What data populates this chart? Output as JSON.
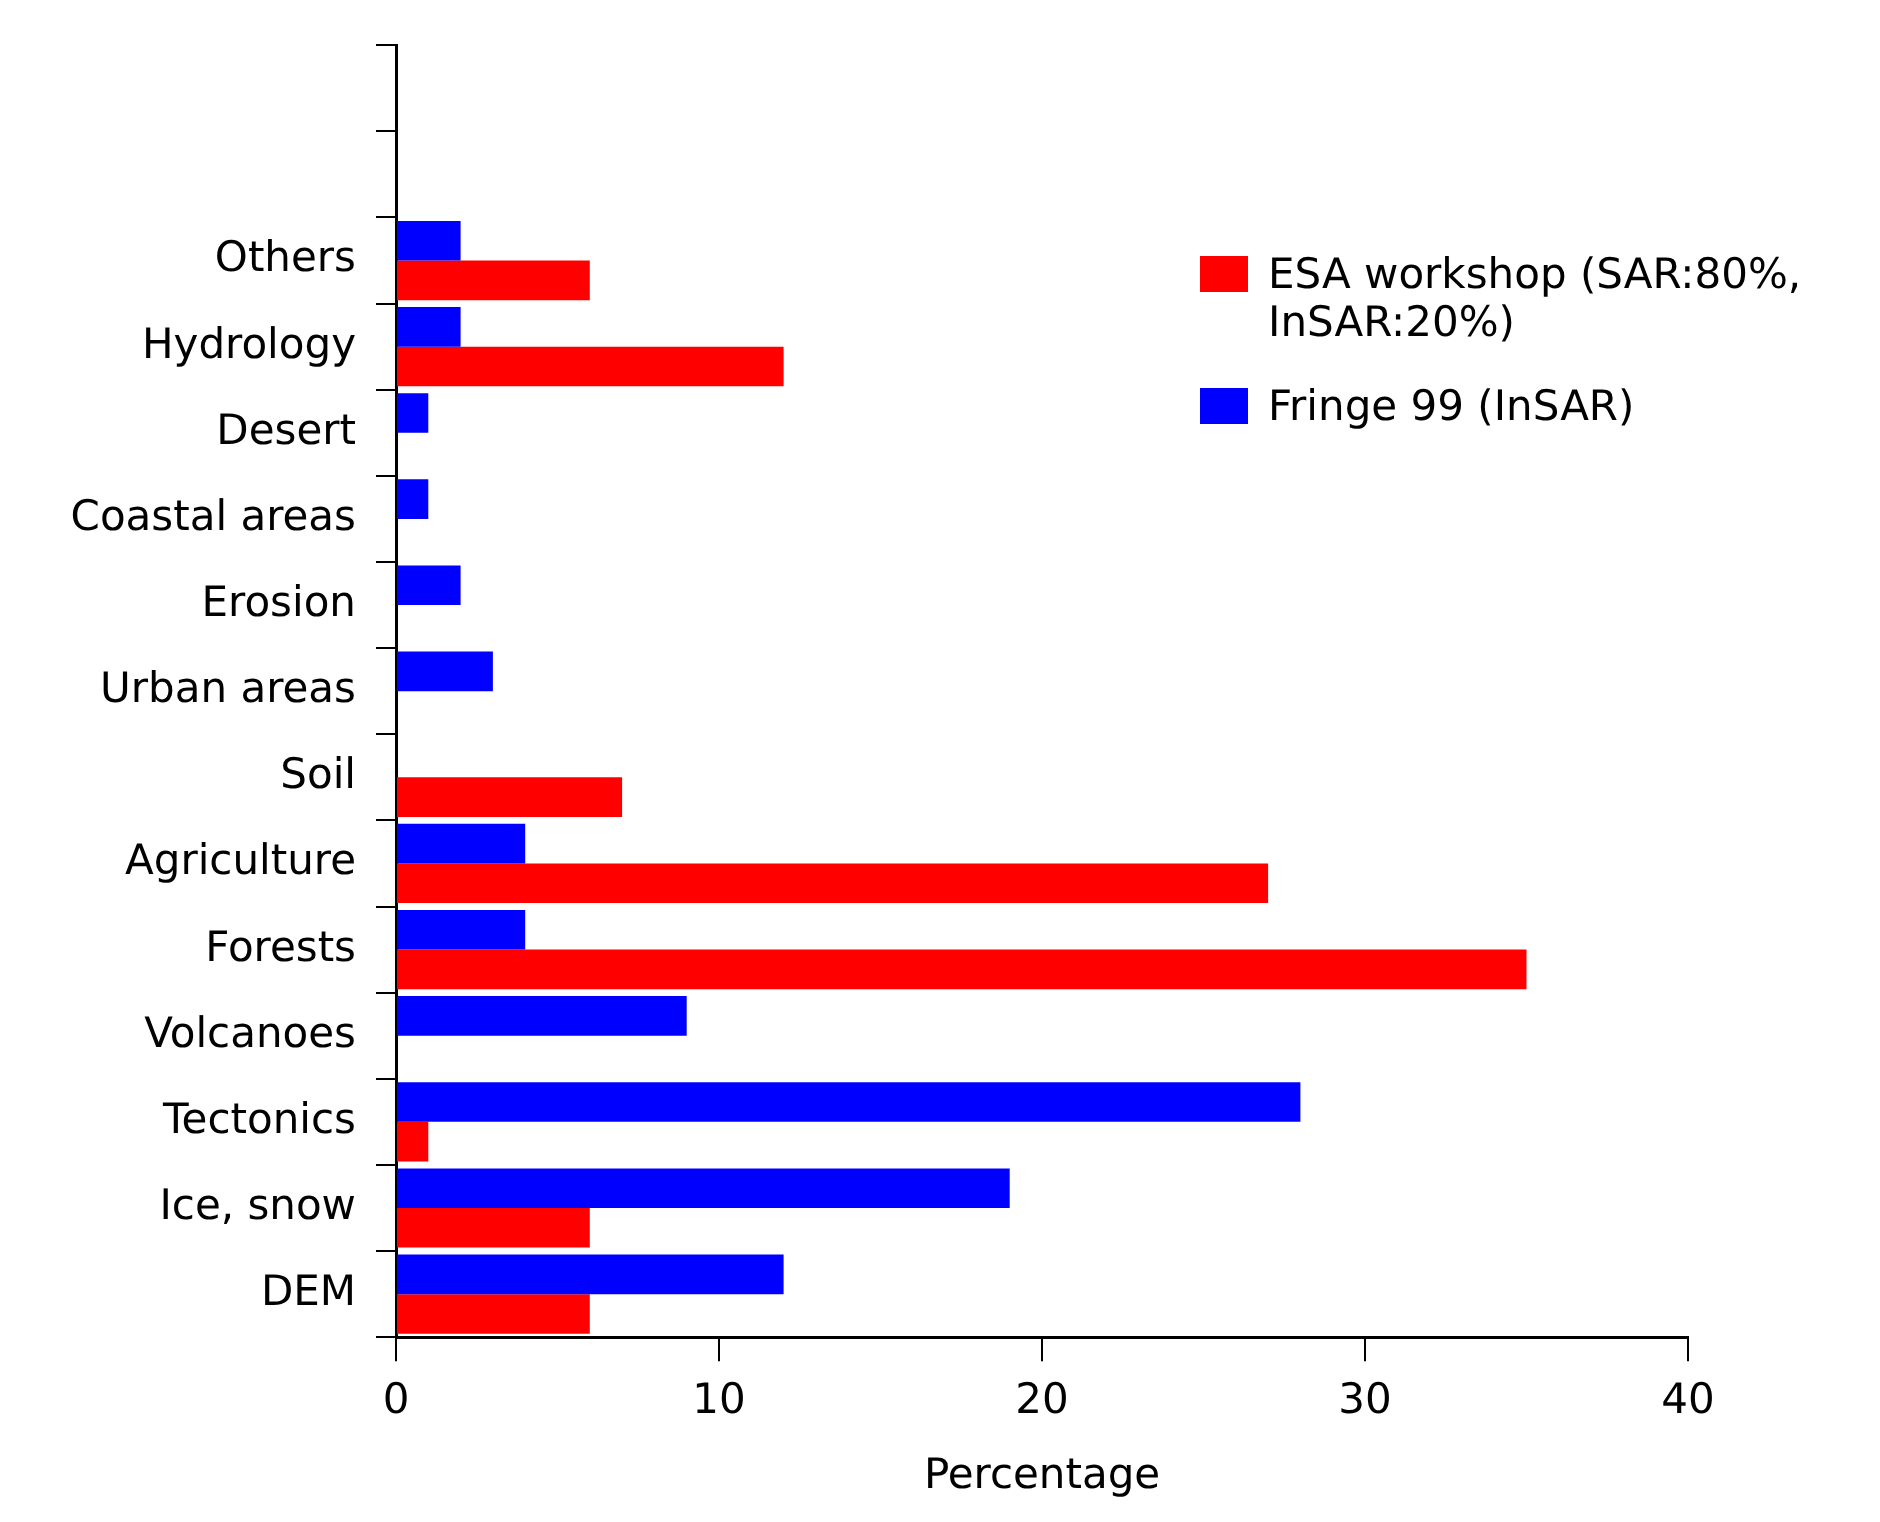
{
  "chart_data": {
    "type": "bar",
    "orientation": "horizontal",
    "xlabel": "Percentage",
    "categories": [
      null,
      null,
      "Others",
      "Hydrology",
      "Desert",
      "Coastal areas",
      "Erosion",
      "Urban areas",
      "Soil",
      "Agriculture",
      "Forests",
      "Volcanoes",
      "Tectonics",
      "Ice, snow",
      "DEM"
    ],
    "series": [
      {
        "name": "ESA workshop (SAR:80%, InSAR:20%)",
        "color": "#ff0000",
        "values": [
          null,
          null,
          6,
          12,
          null,
          null,
          null,
          null,
          7,
          27,
          35,
          null,
          1,
          6,
          6
        ]
      },
      {
        "name": "Fringe 99 (InSAR)",
        "color": "#0000ff",
        "values": [
          null,
          null,
          2,
          2,
          1,
          1,
          2,
          3,
          null,
          4,
          4,
          9,
          28,
          19,
          12
        ]
      }
    ],
    "xlim": [
      0,
      40
    ],
    "xticks": [
      0,
      10,
      20,
      30,
      40
    ],
    "grid": false,
    "legend": "top right"
  }
}
